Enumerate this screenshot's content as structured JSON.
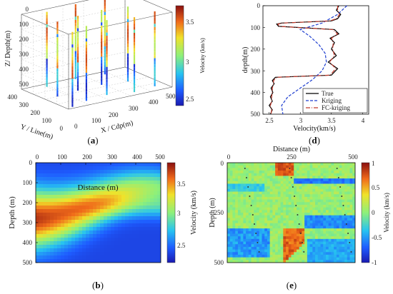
{
  "panels": {
    "a": {
      "caption_open": "(",
      "caption_letter": "a",
      "caption_close": ")",
      "z_label": "Z/ Depth(m)",
      "y_label": "Y / Line(m)",
      "x_label": "X / Cdp(m)",
      "z_ticks": [
        "0",
        "100",
        "200",
        "300",
        "400",
        "500"
      ],
      "y_ticks": [
        "0",
        "100",
        "200",
        "300",
        "400"
      ],
      "x_ticks": [
        "0",
        "100",
        "200",
        "300",
        "400",
        "500"
      ],
      "colorbar_label": "Velocity (km/s)",
      "colorbar_ticks": [
        "2.5",
        "3",
        "3.5"
      ]
    },
    "b": {
      "caption_open": "(",
      "caption_letter": "b",
      "caption_close": ")",
      "x_label": "Distance (m)",
      "y_label": "Depth (m)",
      "x_ticks": [
        "0",
        "100",
        "200",
        "300",
        "400",
        "500"
      ],
      "y_ticks": [
        "0",
        "100",
        "200",
        "300",
        "400",
        "500"
      ],
      "colorbar_label": "Velocity (km/s)",
      "colorbar_ticks": [
        "2.5",
        "3",
        "3.5"
      ]
    },
    "d": {
      "caption_open": "(",
      "caption_letter": "d",
      "caption_close": ")",
      "x_label": "Velocity(km/s)",
      "y_label": "depth(m)",
      "x_ticks": [
        "2.5",
        "3",
        "3.5",
        "4"
      ],
      "y_ticks": [
        "0",
        "100",
        "200",
        "300",
        "400",
        "500"
      ],
      "legend": [
        "True",
        "Kriging",
        "FC-kriging"
      ]
    },
    "e": {
      "caption_open": "(",
      "caption_letter": "e",
      "caption_close": ")",
      "x_label": "Distance (m)",
      "y_label": "Depth (m)",
      "x_ticks": [
        "0",
        "250",
        "500"
      ],
      "y_ticks": [
        "0",
        "250",
        "500"
      ],
      "colorbar_label": "Velocity (km/s)",
      "colorbar_ticks": [
        "1",
        "0.5",
        "0",
        "-0.5",
        "-1"
      ]
    }
  },
  "chart_data": [
    {
      "panel": "a",
      "type": "scatter",
      "note": "3D well-log positions",
      "xlabel": "X / Cdp(m)",
      "ylabel": "Y / Line(m)",
      "zlabel": "Z/ Depth(m)",
      "xlim": [
        0,
        500
      ],
      "ylim": [
        0,
        400
      ],
      "zlim": [
        0,
        500
      ],
      "wells": [
        {
          "x": 30,
          "y": 20
        },
        {
          "x": 120,
          "y": 60
        },
        {
          "x": 230,
          "y": 80
        },
        {
          "x": 340,
          "y": 40
        },
        {
          "x": 450,
          "y": 60
        },
        {
          "x": 60,
          "y": 200
        },
        {
          "x": 170,
          "y": 220
        },
        {
          "x": 290,
          "y": 230
        },
        {
          "x": 400,
          "y": 200
        },
        {
          "x": 100,
          "y": 360
        },
        {
          "x": 250,
          "y": 380
        },
        {
          "x": 380,
          "y": 360
        }
      ],
      "colorbar": {
        "min": 2.3,
        "max": 3.8
      }
    },
    {
      "panel": "b",
      "type": "heatmap",
      "xlabel": "Distance (m)",
      "ylabel": "Depth (m)",
      "xlim": [
        0,
        500
      ],
      "ylim": [
        0,
        500
      ],
      "colorbar": {
        "label": "Velocity (km/s)",
        "min": 2.3,
        "max": 3.8
      }
    },
    {
      "panel": "d",
      "type": "line",
      "xlabel": "Velocity(km/s)",
      "ylabel": "depth(m)",
      "xlim": [
        2.4,
        4.1
      ],
      "ylim": [
        0,
        500
      ],
      "series": [
        {
          "name": "True",
          "color": "#000000",
          "dash": "none",
          "depth": [
            0,
            20,
            40,
            60,
            70,
            80,
            85,
            95,
            110,
            130,
            150,
            170,
            200,
            230,
            260,
            290,
            320,
            330,
            345,
            360,
            380,
            400,
            420,
            440,
            460,
            480,
            500
          ],
          "velocity": [
            3.62,
            3.58,
            3.65,
            3.6,
            3.5,
            2.7,
            2.62,
            2.65,
            3.55,
            3.62,
            3.48,
            3.55,
            3.5,
            3.58,
            3.45,
            3.6,
            3.5,
            2.6,
            2.55,
            2.58,
            2.53,
            2.56,
            2.52,
            2.55,
            2.5,
            2.55,
            2.52
          ]
        },
        {
          "name": "Kriging",
          "color": "#1f3fd0",
          "dash": "4,2",
          "depth": [
            0,
            40,
            80,
            110,
            140,
            180,
            220,
            260,
            300,
            340,
            380,
            420,
            460,
            500
          ],
          "velocity": [
            3.75,
            3.6,
            3.35,
            3.0,
            3.15,
            3.3,
            3.4,
            3.42,
            3.35,
            3.2,
            3.0,
            2.8,
            2.7,
            2.72
          ]
        },
        {
          "name": "FC-kriging",
          "color": "#c0392b",
          "dash": "6,2,1,2",
          "depth": [
            0,
            20,
            40,
            60,
            70,
            80,
            85,
            95,
            110,
            130,
            150,
            170,
            200,
            230,
            260,
            290,
            320,
            330,
            345,
            360,
            380,
            400,
            420,
            440,
            460,
            480,
            500
          ],
          "velocity": [
            3.6,
            3.6,
            3.63,
            3.58,
            3.48,
            2.72,
            2.64,
            2.66,
            3.52,
            3.6,
            3.5,
            3.53,
            3.52,
            3.55,
            3.47,
            3.57,
            3.48,
            2.62,
            2.57,
            2.57,
            2.55,
            2.55,
            2.54,
            2.54,
            2.52,
            2.54,
            2.53
          ]
        }
      ]
    },
    {
      "panel": "e",
      "type": "heatmap",
      "xlabel": "Distance (m)",
      "ylabel": "Depth (m)",
      "xlim": [
        0,
        500
      ],
      "ylim": [
        0,
        500
      ],
      "colorbar": {
        "label": "Velocity (km/s)",
        "min": -1,
        "max": 1
      }
    }
  ]
}
